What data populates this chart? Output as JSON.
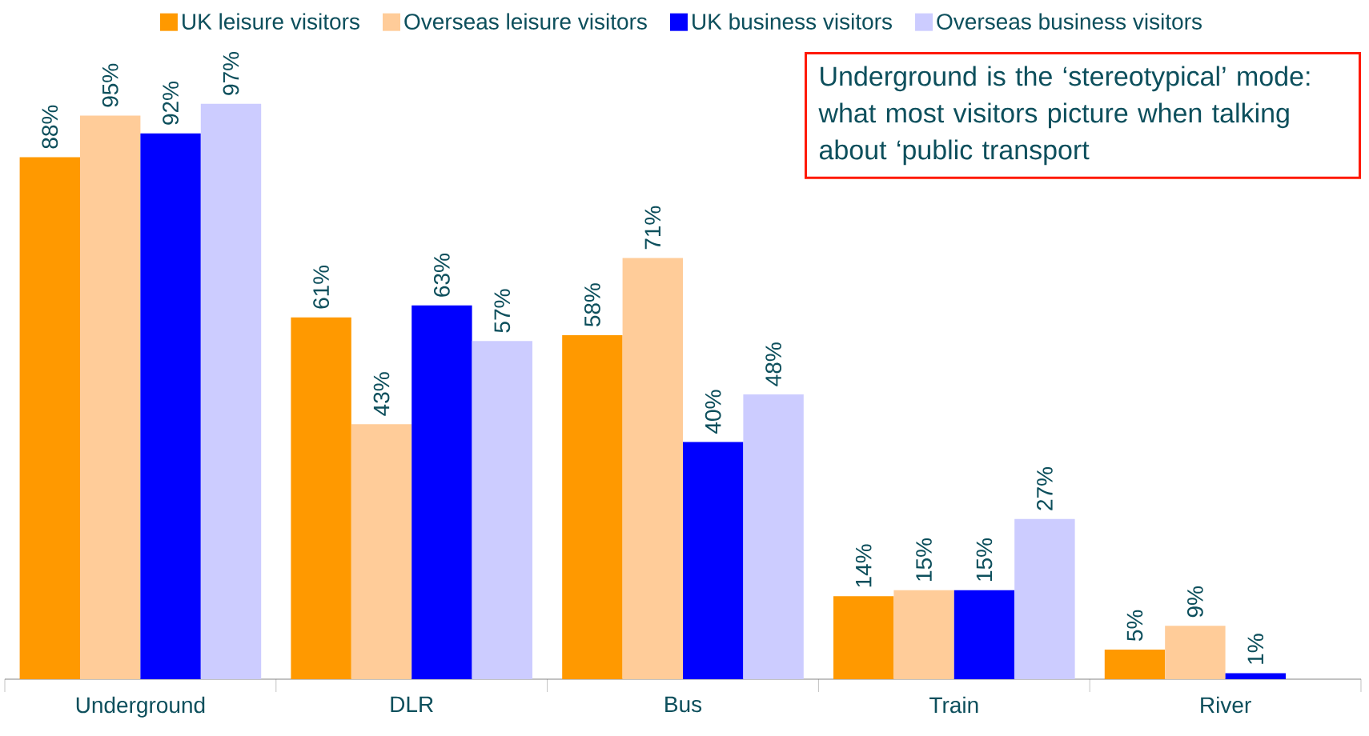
{
  "chart_data": {
    "type": "bar",
    "categories": [
      "Underground",
      "DLR",
      "Bus",
      "Train",
      "River"
    ],
    "series": [
      {
        "name": "UK leisure visitors",
        "color": "#ff9900",
        "values": [
          88,
          61,
          58,
          14,
          5
        ],
        "value_labels": [
          "88%",
          "61%",
          "58%",
          "14%",
          "5%"
        ]
      },
      {
        "name": "Overseas leisure visitors",
        "color": "#ffcc99",
        "values": [
          95,
          43,
          71,
          15,
          9
        ],
        "value_labels": [
          "95%",
          "43%",
          "71%",
          "15%",
          "9%"
        ]
      },
      {
        "name": "UK business visitors",
        "color": "#0000ff",
        "values": [
          92,
          63,
          40,
          15,
          1
        ],
        "value_labels": [
          "92%",
          "63%",
          "40%",
          "15%",
          "1%"
        ]
      },
      {
        "name": "Overseas business visitors",
        "color": "#ccccff",
        "values": [
          97,
          57,
          48,
          27,
          null
        ],
        "value_labels": [
          "97%",
          "57%",
          "48%",
          "27%",
          null
        ]
      }
    ],
    "annotations": [
      "Underground is the ‘stereotypical’ mode: what most visitors picture when talking about ‘public transport"
    ],
    "legend": "top"
  }
}
